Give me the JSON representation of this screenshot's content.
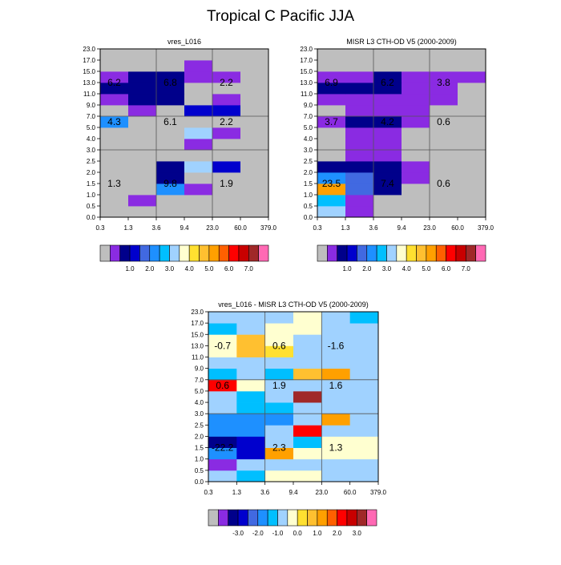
{
  "figure_title": "Tropical C Pacific JJA",
  "palettes": {
    "model": [
      "#bebebe",
      "#8a2be2",
      "#00008b",
      "#0000cd",
      "#4169e1",
      "#1e90ff",
      "#00bfff",
      "#a0d2ff",
      "#ffffd0",
      "#ffe030",
      "#ffc030",
      "#ffa000",
      "#ff6000",
      "#ff0000",
      "#c80000",
      "#a02828",
      "#ff69b4"
    ],
    "diff": [
      "#bebebe",
      "#8a2be2",
      "#00008b",
      "#0000cd",
      "#4169e1",
      "#1e90ff",
      "#00bfff",
      "#a0d2ff",
      "#ffffd0",
      "#ffe030",
      "#ffc030",
      "#ffa000",
      "#ff6000",
      "#ff0000",
      "#c80000",
      "#a02828",
      "#ff69b4"
    ]
  },
  "chart_data": [
    {
      "type": "heatmap",
      "title": "vres_L016",
      "x_ticks": [
        "0.3",
        "1.3",
        "3.6",
        "9.4",
        "23.0",
        "60.0",
        "379.0"
      ],
      "y_ticks": [
        "0.0",
        "0.5",
        "1.0",
        "1.5",
        "2.0",
        "2.5",
        "3.0",
        "4.0",
        "5.0",
        "7.0",
        "9.0",
        "11.0",
        "13.0",
        "15.0",
        "17.0",
        "23.0"
      ],
      "cells": [
        [
          0,
          0,
          0,
          0,
          0,
          0
        ],
        [
          0,
          1,
          0,
          0,
          0,
          0
        ],
        [
          0,
          0,
          5,
          1,
          0,
          0
        ],
        [
          0,
          0,
          2,
          0,
          0,
          0
        ],
        [
          0,
          0,
          2,
          7,
          3,
          0
        ],
        [
          0,
          0,
          0,
          0,
          0,
          0
        ],
        [
          0,
          0,
          0,
          1,
          0,
          0
        ],
        [
          0,
          0,
          0,
          7,
          1,
          0
        ],
        [
          5,
          0,
          0,
          0,
          0,
          0
        ],
        [
          0,
          1,
          0,
          3,
          3,
          0
        ],
        [
          1,
          2,
          2,
          0,
          1,
          0
        ],
        [
          2,
          2,
          2,
          0,
          0,
          0
        ],
        [
          1,
          2,
          2,
          1,
          1,
          0
        ],
        [
          0,
          0,
          0,
          1,
          0,
          0
        ],
        [
          0,
          0,
          0,
          0,
          0,
          0
        ]
      ],
      "cell_labels": [
        {
          "text": "6.2",
          "col": 0.5,
          "row": 12.0
        },
        {
          "text": "6.8",
          "col": 2.5,
          "row": 12.0
        },
        {
          "text": "2.2",
          "col": 4.5,
          "row": 12.0
        },
        {
          "text": "4.3",
          "col": 0.5,
          "row": 8.5
        },
        {
          "text": "6.1",
          "col": 2.5,
          "row": 8.5
        },
        {
          "text": "2.2",
          "col": 4.5,
          "row": 8.5
        },
        {
          "text": "1.3",
          "col": 0.5,
          "row": 3.0
        },
        {
          "text": "9.8",
          "col": 2.5,
          "row": 3.0
        },
        {
          "text": "1.9",
          "col": 4.5,
          "row": 3.0
        }
      ],
      "colorbar": {
        "palette": "model",
        "labels": [
          "1.0",
          "2.0",
          "3.0",
          "4.0",
          "5.0",
          "6.0",
          "7.0"
        ]
      }
    },
    {
      "type": "heatmap",
      "title": "MISR L3 CTH-OD V5 (2000-2009)",
      "x_ticks": [
        "0.3",
        "1.3",
        "3.6",
        "9.4",
        "23.0",
        "60.0",
        "379.0"
      ],
      "y_ticks": [
        "0.0",
        "0.5",
        "1.0",
        "1.5",
        "2.0",
        "2.5",
        "3.0",
        "4.0",
        "5.0",
        "7.0",
        "9.0",
        "11.0",
        "13.0",
        "15.0",
        "17.0",
        "23.0"
      ],
      "cells": [
        [
          7,
          1,
          0,
          0,
          0,
          0
        ],
        [
          6,
          1,
          0,
          0,
          0,
          0
        ],
        [
          11,
          4,
          2,
          0,
          0,
          0
        ],
        [
          5,
          4,
          2,
          1,
          0,
          0
        ],
        [
          2,
          2,
          2,
          1,
          0,
          0
        ],
        [
          0,
          1,
          1,
          0,
          0,
          0
        ],
        [
          0,
          1,
          1,
          0,
          0,
          0
        ],
        [
          0,
          1,
          1,
          0,
          0,
          0
        ],
        [
          1,
          2,
          2,
          1,
          0,
          0
        ],
        [
          0,
          1,
          1,
          1,
          0,
          0
        ],
        [
          1,
          1,
          1,
          1,
          1,
          0
        ],
        [
          2,
          2,
          2,
          1,
          1,
          0
        ],
        [
          1,
          1,
          2,
          1,
          1,
          1
        ],
        [
          0,
          0,
          0,
          0,
          0,
          0
        ],
        [
          0,
          0,
          0,
          0,
          0,
          0
        ]
      ],
      "cell_labels": [
        {
          "text": "6.9",
          "col": 0.5,
          "row": 12.0
        },
        {
          "text": "6.2",
          "col": 2.5,
          "row": 12.0
        },
        {
          "text": "3.8",
          "col": 4.5,
          "row": 12.0
        },
        {
          "text": "3.7",
          "col": 0.5,
          "row": 8.5
        },
        {
          "text": "4.2",
          "col": 2.5,
          "row": 8.5
        },
        {
          "text": "0.6",
          "col": 4.5,
          "row": 8.5
        },
        {
          "text": "23.5",
          "col": 0.5,
          "row": 3.0
        },
        {
          "text": "7.4",
          "col": 2.5,
          "row": 3.0
        },
        {
          "text": "0.6",
          "col": 4.5,
          "row": 3.0
        }
      ],
      "colorbar": {
        "palette": "model",
        "labels": [
          "1.0",
          "2.0",
          "3.0",
          "4.0",
          "5.0",
          "6.0",
          "7.0"
        ]
      }
    },
    {
      "type": "heatmap",
      "title": "vres_L016 - MISR L3 CTH-OD V5 (2000-2009)",
      "x_ticks": [
        "0.3",
        "1.3",
        "3.6",
        "9.4",
        "23.0",
        "60.0",
        "379.0"
      ],
      "y_ticks": [
        "0.0",
        "0.5",
        "1.0",
        "1.5",
        "2.0",
        "2.5",
        "3.0",
        "4.0",
        "5.0",
        "7.0",
        "9.0",
        "11.0",
        "13.0",
        "15.0",
        "17.0",
        "23.0"
      ],
      "cells": [
        [
          7,
          6,
          8,
          8,
          7,
          7
        ],
        [
          1,
          7,
          7,
          7,
          7,
          7
        ],
        [
          5,
          3,
          11,
          8,
          8,
          8
        ],
        [
          2,
          3,
          7,
          6,
          8,
          8
        ],
        [
          5,
          5,
          7,
          13,
          7,
          7
        ],
        [
          5,
          5,
          5,
          7,
          11,
          7
        ],
        [
          7,
          6,
          6,
          7,
          7,
          7
        ],
        [
          7,
          6,
          7,
          15,
          7,
          7
        ],
        [
          13,
          8,
          7,
          7,
          7,
          7
        ],
        [
          6,
          7,
          6,
          10,
          11,
          7
        ],
        [
          7,
          7,
          7,
          7,
          7,
          7
        ],
        [
          8,
          10,
          9,
          7,
          7,
          7
        ],
        [
          8,
          10,
          8,
          7,
          7,
          7
        ],
        [
          6,
          7,
          8,
          8,
          7,
          7
        ],
        [
          7,
          7,
          7,
          8,
          7,
          6
        ]
      ],
      "cell_labels": [
        {
          "text": "-0.7",
          "col": 0.5,
          "row": 12.0
        },
        {
          "text": "0.6",
          "col": 2.5,
          "row": 12.0
        },
        {
          "text": "-1.6",
          "col": 4.5,
          "row": 12.0
        },
        {
          "text": "0.6",
          "col": 0.5,
          "row": 8.5
        },
        {
          "text": "1.9",
          "col": 2.5,
          "row": 8.5
        },
        {
          "text": "1.6",
          "col": 4.5,
          "row": 8.5
        },
        {
          "text": "-22.2",
          "col": 0.5,
          "row": 3.0
        },
        {
          "text": "2.3",
          "col": 2.5,
          "row": 3.0
        },
        {
          "text": "1.3",
          "col": 4.5,
          "row": 3.0
        }
      ],
      "colorbar": {
        "palette": "diff",
        "labels": [
          "-3.0",
          "-2.0",
          "-1.0",
          "0.0",
          "1.0",
          "2.0",
          "3.0"
        ]
      }
    }
  ]
}
